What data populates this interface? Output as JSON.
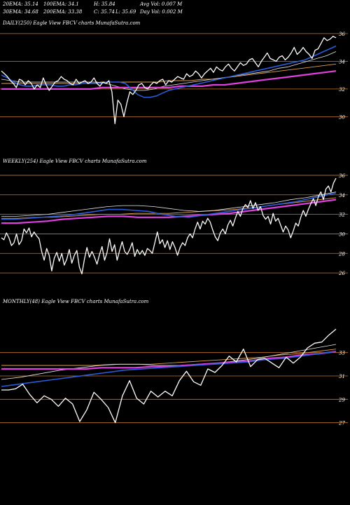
{
  "header": {
    "stats": [
      [
        "20EMA: 35.14",
        "100EMA: 34.1",
        "H: 35.84",
        "Avg Vol: 0.007 M"
      ],
      [
        "30EMA: 34.68",
        "200EMA: 33.38",
        "C: 35.74",
        "L: 35.69",
        "Day Vol: 0.002 M"
      ]
    ]
  },
  "panels": [
    {
      "title": "DAILY(250) Eagle   View  FBCV charts MunafaSutra.com"
    },
    {
      "title": "WEEKLY(254) Eagle   View  FBCV charts MunafaSutra.com"
    },
    {
      "title": "MONTHLY(48) Eagle   View  FBCV charts MunafaSutra.com"
    }
  ],
  "colors": {
    "background": "#000000",
    "price": "#ffffff",
    "grid": "#c8782a",
    "ema_blue": "#2a5bd8",
    "ema_magenta": "#e040e0",
    "ema_orange": "#e0a050",
    "ema_white": "#e8e8e8"
  },
  "chart_data": [
    {
      "type": "line",
      "title": "DAILY(250) Eagle   View  FBCV charts MunafaSutra.com",
      "yticks": [
        36,
        34,
        32,
        30
      ],
      "ylim": [
        28.5,
        36.5
      ],
      "series": [
        {
          "role": "price",
          "values": [
            33.3,
            33.1,
            32.9,
            32.6,
            32.4,
            32.1,
            32.7,
            32.6,
            32.3,
            32.6,
            32.4,
            32.0,
            32.3,
            32.1,
            32.8,
            32.3,
            31.9,
            32.2,
            32.5,
            32.6,
            32.9,
            32.7,
            32.6,
            32.4,
            32.3,
            32.7,
            32.4,
            32.5,
            32.6,
            32.4,
            32.5,
            32.8,
            32.4,
            32.2,
            32.5,
            32.4,
            32.6,
            31.8,
            29.5,
            31.2,
            30.9,
            30.0,
            31.0,
            31.8,
            31.6,
            31.9,
            32.3,
            32.4,
            32.1,
            32.0,
            32.3,
            32.5,
            32.4,
            32.6,
            32.7,
            32.3,
            32.6,
            32.5,
            32.7,
            32.9,
            32.8,
            32.7,
            33.1,
            32.9,
            33.0,
            33.3,
            33.1,
            32.8,
            33.1,
            33.3,
            33.5,
            33.2,
            33.6,
            33.4,
            33.3,
            33.6,
            33.8,
            33.5,
            33.3,
            33.6,
            33.9,
            33.7,
            33.8,
            34.1,
            34.2,
            33.9,
            33.6,
            34.0,
            34.3,
            34.6,
            34.2,
            34.1,
            34.0,
            34.3,
            34.4,
            34.1,
            34.3,
            34.6,
            35.0,
            34.5,
            34.7,
            35.0,
            34.7,
            34.5,
            34.2,
            34.8,
            34.9,
            35.3,
            35.7,
            35.5,
            35.6,
            35.8,
            35.7
          ]
        },
        {
          "role": "ema-blue",
          "values": [
            33.0,
            32.8,
            32.5,
            32.3,
            32.2,
            32.2,
            32.3,
            32.3,
            32.3,
            32.2,
            32.2,
            32.3,
            32.3,
            32.4,
            32.4,
            32.4,
            32.4,
            32.5,
            32.5,
            32.5,
            32.4,
            32.0,
            31.6,
            31.4,
            31.4,
            31.5,
            31.7,
            31.9,
            32.0,
            32.1,
            32.2,
            32.3,
            32.4,
            32.5,
            32.6,
            32.7,
            32.8,
            32.9,
            33.0,
            33.1,
            33.2,
            33.3,
            33.4,
            33.5,
            33.6,
            33.7,
            33.8,
            33.9,
            34.0,
            34.1,
            34.3,
            34.5,
            34.7,
            34.9,
            35.1
          ]
        },
        {
          "role": "ema-magenta",
          "values": [
            32.0,
            32.0,
            32.0,
            32.0,
            32.0,
            32.0,
            32.0,
            32.0,
            32.0,
            32.1,
            32.1,
            32.1,
            32.1,
            32.1,
            32.1,
            32.1,
            32.2,
            32.2,
            32.2,
            32.3,
            32.3,
            32.4,
            32.5,
            32.6,
            32.7,
            32.8,
            32.9,
            33.0,
            33.1,
            33.2,
            33.3
          ]
        },
        {
          "role": "ema-orange",
          "values": [
            32.4,
            32.4,
            32.4,
            32.4,
            32.4,
            32.4,
            32.4,
            32.4,
            32.4,
            32.5,
            32.5,
            32.5,
            32.5,
            32.5,
            32.5,
            32.6,
            32.6,
            32.6,
            32.7,
            32.7,
            32.8,
            32.9,
            33.0,
            33.1,
            33.2,
            33.3,
            33.4,
            33.5,
            33.6,
            33.7,
            33.8
          ]
        },
        {
          "role": "ema-white",
          "values": [
            32.7,
            32.6,
            32.5,
            32.5,
            32.5,
            32.5,
            32.5,
            32.5,
            32.5,
            32.5,
            32.5,
            32.4,
            32.2,
            32.0,
            31.9,
            31.9,
            32.0,
            32.2,
            32.3,
            32.4,
            32.5,
            32.6,
            32.7,
            32.8,
            32.9,
            33.0,
            33.1,
            33.2,
            33.3,
            33.5,
            33.6,
            33.8,
            34.0,
            34.2,
            34.4,
            34.7
          ]
        }
      ]
    },
    {
      "type": "line",
      "title": "WEEKLY(254) Eagle   View  FBCV charts MunafaSutra.com",
      "yticks": [
        36,
        34,
        32,
        30,
        28,
        26
      ],
      "ylim": [
        24.5,
        37
      ],
      "series": [
        {
          "role": "price",
          "values": [
            29.6,
            29.4,
            30.1,
            29.6,
            28.8,
            29.1,
            30.0,
            28.9,
            29.3,
            30.5,
            30.1,
            30.6,
            29.7,
            30.2,
            29.8,
            29.5,
            28.2,
            27.3,
            28.5,
            27.8,
            26.2,
            27.5,
            28.1,
            27.2,
            28.0,
            26.8,
            27.4,
            28.4,
            27.0,
            27.8,
            28.3,
            26.6,
            25.9,
            27.4,
            28.6,
            27.6,
            28.2,
            27.6,
            26.9,
            27.9,
            28.7,
            27.3,
            28.1,
            29.5,
            28.2,
            28.9,
            27.3,
            28.3,
            29.2,
            28.2,
            27.9,
            28.4,
            29.1,
            27.7,
            28.4,
            27.9,
            28.3,
            27.8,
            28.5,
            28.3,
            28.0,
            29.1,
            30.2,
            29.0,
            29.4,
            28.6,
            29.3,
            28.4,
            29.2,
            28.6,
            27.8,
            28.6,
            29.1,
            28.8,
            29.6,
            30.0,
            29.6,
            30.5,
            31.2,
            30.5,
            31.3,
            31.0,
            31.6,
            31.2,
            30.4,
            29.7,
            29.3,
            30.1,
            30.5,
            30.0,
            30.9,
            31.4,
            30.8,
            31.6,
            32.3,
            31.8,
            32.6,
            33.0,
            32.7,
            33.4,
            32.6,
            33.2,
            32.4,
            32.8,
            31.9,
            31.5,
            31.8,
            31.0,
            32.1,
            31.3,
            31.6,
            30.9,
            30.2,
            30.8,
            30.4,
            29.6,
            30.3,
            31.1,
            30.8,
            31.7,
            32.4,
            31.8,
            32.5,
            33.1,
            33.6,
            32.9,
            33.8,
            34.3,
            33.5,
            34.6,
            34.9,
            34.3,
            35.2,
            35.7
          ]
        },
        {
          "role": "ema-blue",
          "values": [
            31.5,
            31.5,
            31.6,
            31.7,
            31.8,
            31.9,
            32.1,
            32.3,
            32.5,
            32.5,
            32.4,
            32.3,
            32.0,
            31.8,
            31.7,
            31.9,
            32.1,
            32.3,
            32.5,
            32.7,
            32.9,
            33.1,
            33.3,
            33.6,
            33.9,
            34.2
          ]
        },
        {
          "role": "ema-magenta",
          "values": [
            31.1,
            31.1,
            31.2,
            31.3,
            31.5,
            31.6,
            31.7,
            31.8,
            31.8,
            31.7,
            31.7,
            31.7,
            31.8,
            31.9,
            32.0,
            32.1,
            32.3,
            32.5,
            32.7,
            32.9,
            33.1,
            33.3,
            33.5
          ]
        },
        {
          "role": "ema-orange",
          "values": [
            31.6,
            31.6,
            31.7,
            31.7,
            31.8,
            31.9,
            32.0,
            32.0,
            32.1,
            32.1,
            32.1,
            32.2,
            32.3,
            32.4,
            32.5,
            32.7,
            32.9,
            33.1,
            33.3,
            33.5,
            33.7
          ]
        },
        {
          "role": "ema-white",
          "values": [
            31.8,
            31.8,
            31.9,
            32.0,
            32.2,
            32.4,
            32.6,
            32.8,
            32.9,
            32.9,
            32.8,
            32.6,
            32.4,
            32.3,
            32.4,
            32.6,
            32.8,
            33.0,
            33.2,
            33.5,
            33.7,
            34.0,
            34.3
          ]
        }
      ]
    },
    {
      "type": "line",
      "title": "MONTHLY(48) Eagle   View  FBCV charts MunafaSutra.com",
      "yticks": [
        33,
        31,
        29,
        27
      ],
      "ylim": [
        25,
        37
      ],
      "series": [
        {
          "role": "price",
          "values": [
            29.8,
            29.8,
            29.9,
            30.3,
            29.4,
            28.7,
            29.3,
            29.0,
            28.4,
            29.1,
            28.6,
            27.1,
            28.1,
            29.6,
            29.0,
            28.3,
            27.0,
            29.3,
            30.6,
            29.1,
            28.6,
            29.7,
            29.2,
            29.7,
            29.3,
            30.6,
            31.4,
            30.5,
            30.2,
            31.6,
            31.3,
            31.9,
            32.7,
            32.2,
            33.3,
            31.8,
            32.4,
            32.5,
            32.1,
            31.7,
            32.6,
            32.1,
            32.6,
            33.4,
            33.8,
            33.9,
            34.5,
            35.0
          ]
        },
        {
          "role": "ema-blue",
          "values": [
            30.1,
            30.3,
            30.5,
            30.7,
            30.9,
            31.1,
            31.3,
            31.5,
            31.6,
            31.7,
            31.8,
            31.9,
            32.0,
            32.1,
            32.2,
            32.4,
            32.5,
            32.7,
            32.9,
            33.1
          ]
        },
        {
          "role": "ema-magenta",
          "values": [
            31.6,
            31.6,
            31.6,
            31.6,
            31.6,
            31.6,
            31.7,
            31.7,
            31.7,
            31.8,
            31.8,
            31.9,
            32.0,
            32.1,
            32.2,
            32.3,
            32.5,
            32.6,
            32.8,
            32.9,
            33.1
          ]
        },
        {
          "role": "ema-orange",
          "values": [
            31.9,
            31.9,
            31.9,
            31.9,
            31.9,
            31.9,
            32.0,
            32.0,
            32.0,
            32.1,
            32.2,
            32.3,
            32.4,
            32.5,
            32.6,
            32.8,
            32.9,
            33.1,
            33.3
          ]
        },
        {
          "role": "ema-white",
          "values": [
            30.7,
            30.9,
            31.2,
            31.5,
            31.7,
            31.9,
            32.0,
            32.0,
            31.9,
            31.9,
            32.0,
            32.1,
            32.3,
            32.5,
            32.8,
            33.1,
            33.4,
            33.7
          ]
        }
      ]
    }
  ]
}
